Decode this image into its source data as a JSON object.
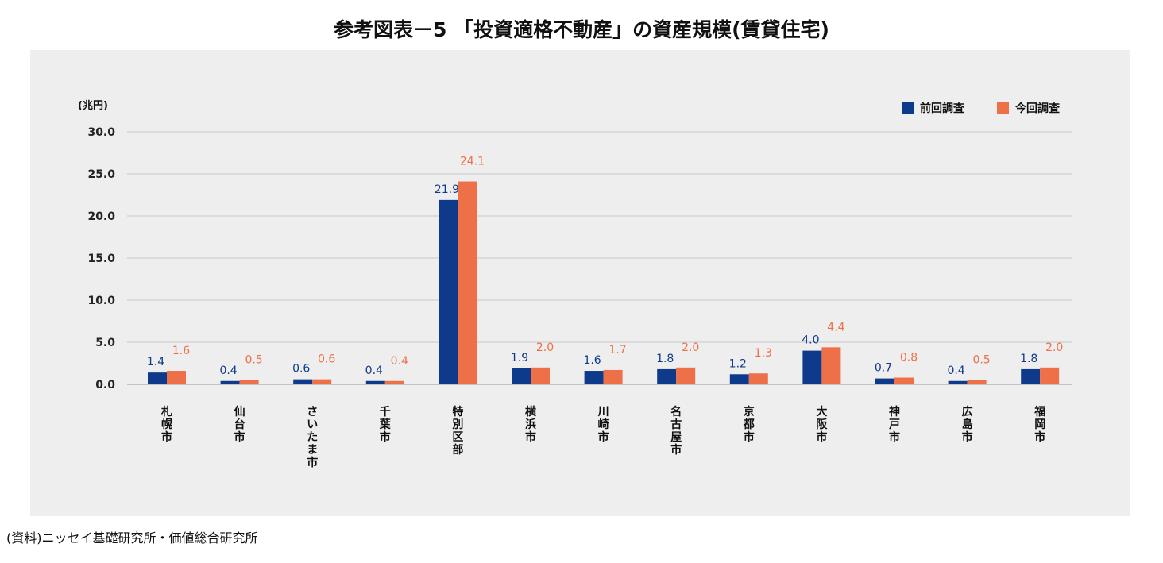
{
  "title": "参考図表－5 「投資適格不動産」の資産規模(賃貸住宅)",
  "source": "(資料)ニッセイ基礎研究所・価値総合研究所",
  "colors": {
    "prev": "#0e3a8c",
    "curr": "#ee7049",
    "grid": "#c8c8c8",
    "panel": "#eeeeee"
  },
  "chart_data": {
    "type": "bar",
    "unit_label": "(兆円)",
    "ylim": [
      0,
      30
    ],
    "yticks": [
      "30.0",
      "25.0",
      "20.0",
      "15.0",
      "10.0",
      "5.0",
      "0.0"
    ],
    "ytick_values": [
      30,
      25,
      20,
      15,
      10,
      5,
      0
    ],
    "grid": true,
    "legend_position": "top-right",
    "categories": [
      "札幌市",
      "仙台市",
      "さいたま市",
      "千葉市",
      "特別区部",
      "横浜市",
      "川崎市",
      "名古屋市",
      "京都市",
      "大阪市",
      "神戸市",
      "広島市",
      "福岡市"
    ],
    "series": [
      {
        "name": "前回調査",
        "values": [
          1.4,
          0.4,
          0.6,
          0.4,
          21.9,
          1.9,
          1.6,
          1.8,
          1.2,
          4.0,
          0.7,
          0.4,
          1.8
        ],
        "labels": [
          "1.4",
          "0.4",
          "0.6",
          "0.4",
          "21.9",
          "1.9",
          "1.6",
          "1.8",
          "1.2",
          "4.0",
          "0.7",
          "0.4",
          "1.8"
        ]
      },
      {
        "name": "今回調査",
        "values": [
          1.6,
          0.5,
          0.6,
          0.4,
          24.1,
          2.0,
          1.7,
          2.0,
          1.3,
          4.4,
          0.8,
          0.5,
          2.0
        ],
        "labels": [
          "1.6",
          "0.5",
          "0.6",
          "0.4",
          "24.1",
          "2.0",
          "1.7",
          "2.0",
          "1.3",
          "4.4",
          "0.8",
          "0.5",
          "2.0"
        ]
      }
    ]
  }
}
